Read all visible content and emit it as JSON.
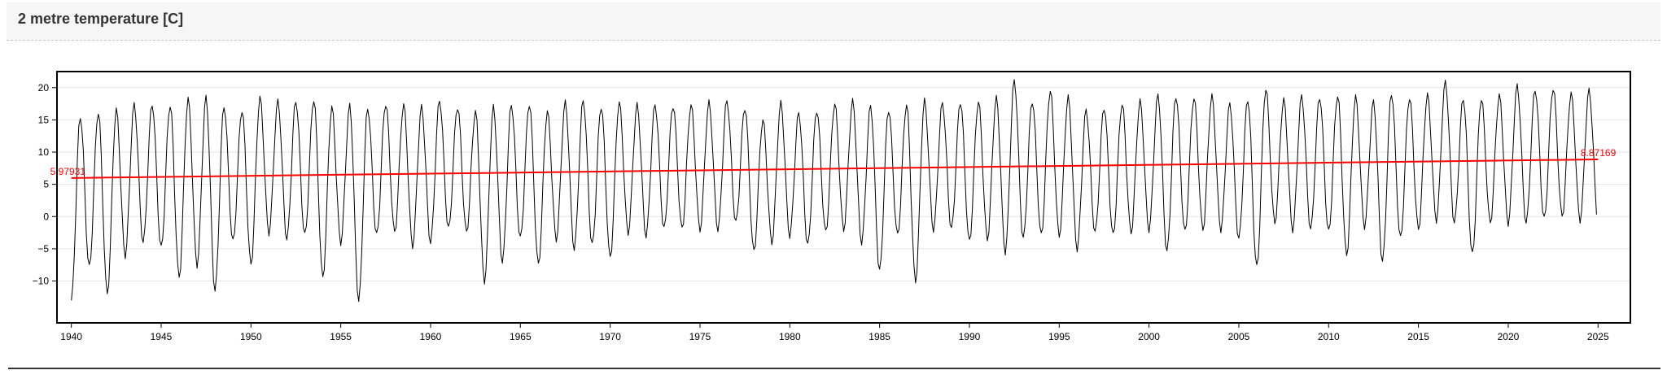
{
  "header": {
    "title": "2 metre temperature [C]"
  },
  "colors": {
    "series": "#000000",
    "trend": "#ff0000",
    "frame": "#000000",
    "grid": "#e6e6e6"
  },
  "chart_data": {
    "type": "line",
    "title": "2 metre temperature [C]",
    "xlabel": "",
    "ylabel": "",
    "xlim": [
      1939.2,
      2026.8
    ],
    "ylim": [
      -16.5,
      22.5
    ],
    "grid": "horizontal",
    "x_ticks": [
      1940,
      1945,
      1950,
      1955,
      1960,
      1965,
      1970,
      1975,
      1980,
      1985,
      1990,
      1995,
      2000,
      2005,
      2010,
      2015,
      2020,
      2025
    ],
    "x_tick_labels": [
      "1940",
      "1945",
      "1950",
      "1955",
      "1960",
      "1965",
      "1970",
      "1975",
      "1980",
      "1985",
      "1990",
      "1995",
      "2000",
      "2005",
      "2010",
      "2015",
      "2020",
      "2025"
    ],
    "y_ticks": [
      -10,
      -5,
      0,
      5,
      10,
      15,
      20
    ],
    "y_tick_labels": [
      "−10",
      "−5",
      "0",
      "5",
      "10",
      "15",
      "20"
    ],
    "series": [
      {
        "kind": "monthly_seasonal_cycle",
        "start": 1940.0,
        "end": 2024.95,
        "samples_per_year": 12,
        "summer_peak_by_year": [
          15.6,
          16.3,
          16.5,
          17.3,
          17.5,
          17.4,
          18.2,
          18.4,
          17.2,
          16.6,
          18.4,
          17.8,
          18.0,
          18.3,
          16.9,
          17.1,
          16.9,
          17.6,
          17.3,
          16.9,
          18.1,
          17.1,
          16.3,
          16.9,
          17.4,
          17.6,
          16.3,
          17.6,
          18.1,
          17.2,
          17.7,
          17.2,
          17.4,
          17.3,
          17.3,
          17.6,
          18.0,
          17.0,
          15.0,
          17.5,
          16.1,
          16.6,
          17.5,
          17.8,
          17.2,
          16.7,
          17.4,
          17.9,
          17.6,
          17.9,
          17.9,
          18.3,
          21.1,
          18.0,
          19.6,
          18.4,
          16.5,
          17.0,
          17.5,
          17.8,
          18.8,
          18.8,
          18.5,
          18.6,
          17.4,
          18.3,
          19.9,
          18.0,
          18.6,
          18.6,
          18.9,
          18.5,
          17.8,
          19.2,
          18.5,
          18.8,
          20.8,
          18.4,
          18.4,
          18.7,
          20.2,
          19.8,
          20.0,
          19.0,
          19.5
        ],
        "winter_trough_by_year": [
          -13.0,
          -8.0,
          -12.0,
          -6.0,
          -4.0,
          -5.0,
          -9.5,
          -7.5,
          -11.5,
          -4.0,
          -7.5,
          -2.5,
          -3.5,
          -3.0,
          -9.5,
          -4.0,
          -13.0,
          -3.0,
          -2.5,
          -4.5,
          -4.0,
          -2.0,
          -2.5,
          -10.0,
          -7.0,
          -3.5,
          -7.5,
          -3.5,
          -5.0,
          -4.5,
          -6.5,
          -2.5,
          -3.0,
          -2.0,
          -2.0,
          -2.0,
          -2.0,
          -1.0,
          -5.5,
          -4.0,
          -3.0,
          -4.5,
          -2.5,
          -2.0,
          -4.0,
          -8.5,
          -3.0,
          -10.0,
          -2.0,
          -2.0,
          -4.0,
          -3.5,
          -5.5,
          -3.5,
          -3.0,
          -3.0,
          -5.0,
          -2.5,
          -3.0,
          -2.5,
          -2.0,
          -5.5,
          -2.5,
          -2.0,
          -2.0,
          -3.5,
          -8.0,
          -1.0,
          -2.0,
          -2.0,
          -2.5,
          -6.0,
          -1.5,
          -7.0,
          -3.5,
          -2.0,
          -0.5,
          -1.0,
          -6.0,
          -1.0,
          -1.0,
          -1.0,
          -0.5,
          0.0,
          -0.5
        ]
      },
      {
        "name": "",
        "kind": "linear_trend",
        "x": [
          1940.0,
          2025.0
        ],
        "y": [
          5.97931,
          8.87169
        ]
      }
    ],
    "annotations": [
      {
        "text": "5.97931",
        "x": 1940.0,
        "y": 5.97931,
        "anchor": "start"
      },
      {
        "text": "8.87169",
        "x": 2025.0,
        "y": 8.87169,
        "anchor": "end"
      }
    ]
  }
}
